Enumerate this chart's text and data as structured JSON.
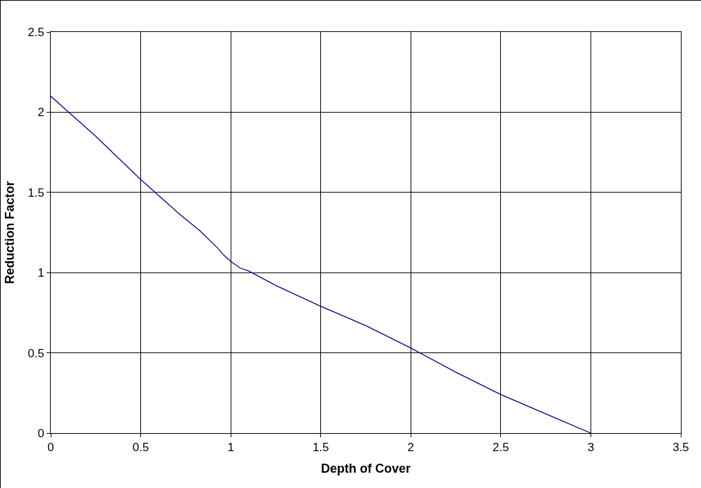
{
  "chart_data": {
    "type": "line",
    "xlabel": "Depth of Cover",
    "ylabel": "Reduction Factor",
    "x": [
      0,
      0.1,
      0.25,
      0.5,
      0.72,
      0.83,
      0.93,
      0.96,
      1.0,
      1.05,
      1.1,
      1.25,
      1.5,
      1.75,
      2.0,
      2.25,
      2.5,
      2.75,
      3.0
    ],
    "series": [
      {
        "color": "#000080",
        "values": [
          2.1,
          2.0,
          1.85,
          1.58,
          1.36,
          1.26,
          1.15,
          1.11,
          1.07,
          1.03,
          1.01,
          0.92,
          0.79,
          0.67,
          0.53,
          0.38,
          0.24,
          0.12,
          0
        ]
      }
    ],
    "xlim": [
      0,
      3.5
    ],
    "xticks": [
      0,
      0.5,
      1,
      1.5,
      2,
      2.5,
      3,
      3.5
    ],
    "ylim": [
      0,
      2.5
    ],
    "yticks": [
      0,
      0.5,
      1,
      1.5,
      2,
      2.5
    ],
    "grid": true,
    "marker": "none",
    "line_style": "solid"
  }
}
